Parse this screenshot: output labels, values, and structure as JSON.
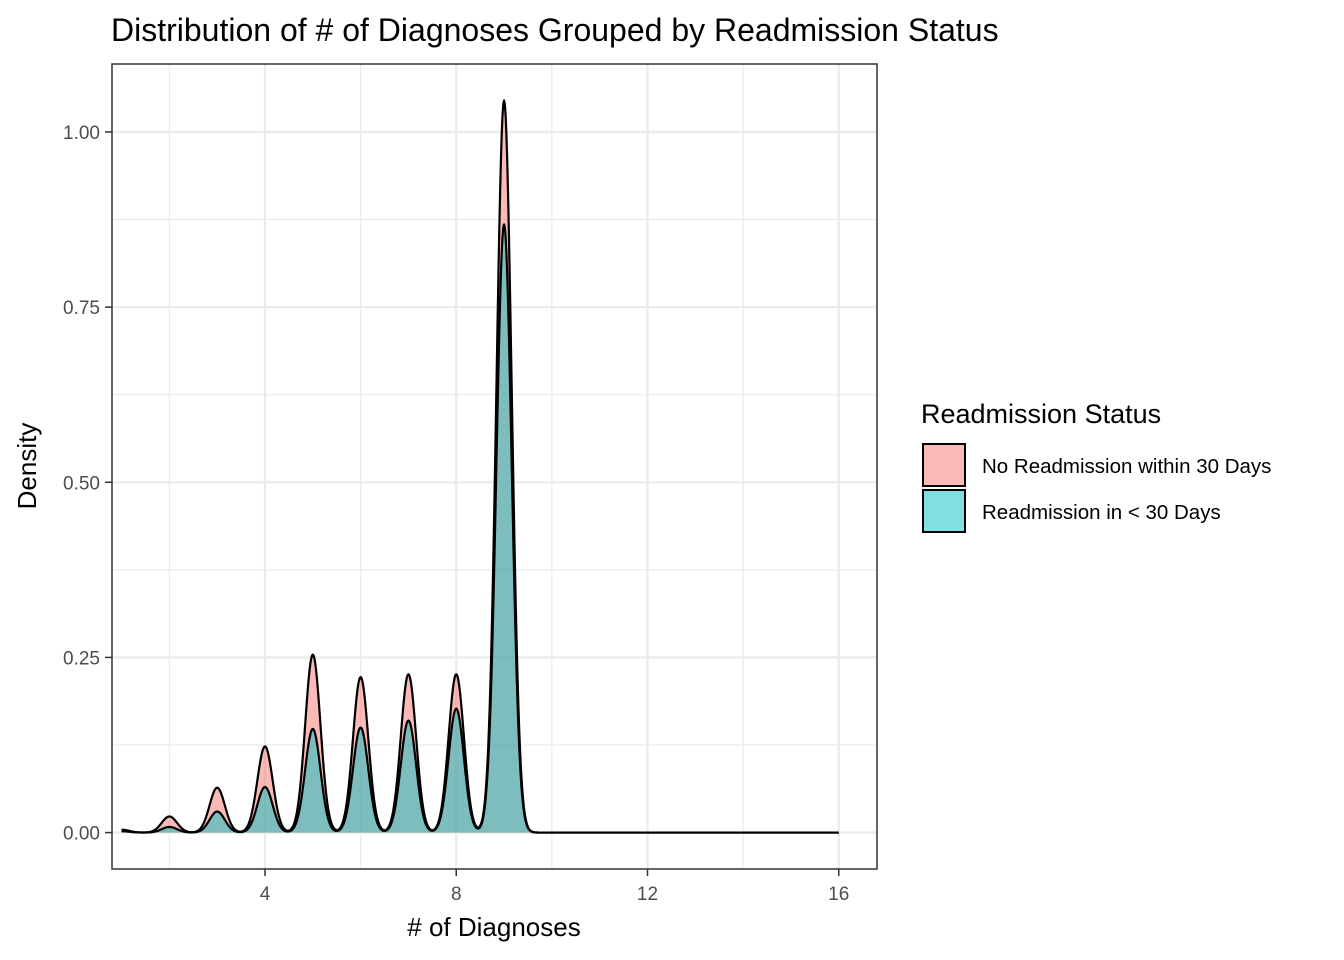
{
  "chart_data": {
    "type": "area",
    "title": "Distribution of # of Diagnoses Grouped by Readmission Status",
    "xlabel": "# of Diagnoses",
    "ylabel": "Density",
    "xlim": [
      0.8,
      16.8
    ],
    "ylim": [
      -0.052,
      1.097
    ],
    "x_ticks": [
      4,
      8,
      12,
      16
    ],
    "x_tick_labels": [
      "4",
      "8",
      "12",
      "16"
    ],
    "y_ticks": [
      0,
      0.25,
      0.5,
      0.75,
      1.0
    ],
    "y_tick_labels": [
      "0.00",
      "0.25",
      "0.50",
      "0.75",
      "1.00"
    ],
    "grid": true,
    "legend_position": "right",
    "legend_title": "Readmission Status",
    "x_range": [
      1,
      16
    ],
    "series": [
      {
        "name": "No Readmission within 30 Days",
        "color": "#F8766D",
        "peaks": [
          {
            "x": 1,
            "y": 0.004
          },
          {
            "x": 2,
            "y": 0.023
          },
          {
            "x": 3,
            "y": 0.064
          },
          {
            "x": 4,
            "y": 0.123
          },
          {
            "x": 5,
            "y": 0.254
          },
          {
            "x": 6,
            "y": 0.222
          },
          {
            "x": 7,
            "y": 0.226
          },
          {
            "x": 8,
            "y": 0.226
          },
          {
            "x": 9,
            "y": 1.045
          },
          {
            "x": 10,
            "y": 0.0
          },
          {
            "x": 11,
            "y": 0.0
          },
          {
            "x": 12,
            "y": 0.0
          },
          {
            "x": 13,
            "y": 0.0
          },
          {
            "x": 14,
            "y": 0.0
          },
          {
            "x": 15,
            "y": 0.0
          },
          {
            "x": 16,
            "y": 0.0
          }
        ]
      },
      {
        "name": "Readmission in < 30 Days",
        "color": "#00BFC4",
        "peaks": [
          {
            "x": 1,
            "y": 0.002
          },
          {
            "x": 2,
            "y": 0.008
          },
          {
            "x": 3,
            "y": 0.03
          },
          {
            "x": 4,
            "y": 0.065
          },
          {
            "x": 5,
            "y": 0.148
          },
          {
            "x": 6,
            "y": 0.15
          },
          {
            "x": 7,
            "y": 0.16
          },
          {
            "x": 8,
            "y": 0.177
          },
          {
            "x": 9,
            "y": 0.868
          },
          {
            "x": 10,
            "y": 0.0
          },
          {
            "x": 11,
            "y": 0.0
          },
          {
            "x": 12,
            "y": 0.0
          },
          {
            "x": 13,
            "y": 0.0
          },
          {
            "x": 14,
            "y": 0.0
          },
          {
            "x": 15,
            "y": 0.0
          },
          {
            "x": 16,
            "y": 0.0
          }
        ]
      }
    ]
  }
}
